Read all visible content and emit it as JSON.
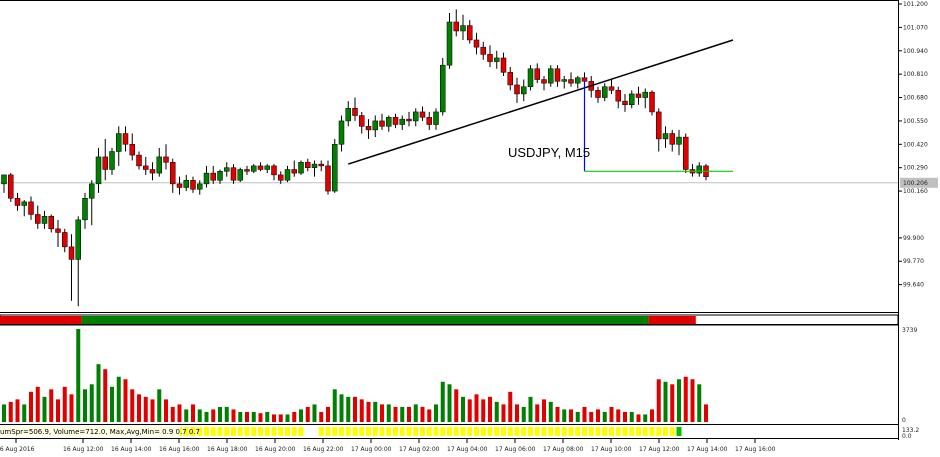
{
  "chart_data": {
    "type": "candlestick",
    "title": "USDJPY, M15",
    "price_axis": {
      "ylim": [
        99.51,
        101.2
      ],
      "ticks": [
        "101.200",
        "101.070",
        "100.940",
        "100.810",
        "100.680",
        "100.550",
        "100.420",
        "100.290",
        "100.160",
        "99.900",
        "99.770",
        "99.640"
      ],
      "current_price": "100.206"
    },
    "time_axis": {
      "ticks": [
        "16 Aug 2016",
        "16 Aug 12:00",
        "16 Aug 14:00",
        "16 Aug 16:00",
        "16 Aug 18:00",
        "16 Aug 20:00",
        "16 Aug 22:00",
        "17 Aug 00:00",
        "17 Aug 02:00",
        "17 Aug 04:00",
        "17 Aug 06:00",
        "17 Aug 08:00",
        "17 Aug 10:00",
        "17 Aug 12:00",
        "17 Aug 14:00",
        "17 Aug 16:00"
      ]
    },
    "candles": [
      {
        "o": 100.2,
        "h": 100.25,
        "l": 100.15,
        "c": 100.25
      },
      {
        "o": 100.25,
        "h": 100.26,
        "l": 100.1,
        "c": 100.12
      },
      {
        "o": 100.12,
        "h": 100.15,
        "l": 100.05,
        "c": 100.08
      },
      {
        "o": 100.08,
        "h": 100.11,
        "l": 100.02,
        "c": 100.1
      },
      {
        "o": 100.1,
        "h": 100.13,
        "l": 100.0,
        "c": 100.03
      },
      {
        "o": 100.03,
        "h": 100.08,
        "l": 99.95,
        "c": 99.98
      },
      {
        "o": 99.98,
        "h": 100.05,
        "l": 99.95,
        "c": 100.02
      },
      {
        "o": 100.02,
        "h": 100.03,
        "l": 99.93,
        "c": 99.95
      },
      {
        "o": 99.95,
        "h": 100.0,
        "l": 99.85,
        "c": 99.93
      },
      {
        "o": 99.93,
        "h": 99.95,
        "l": 99.82,
        "c": 99.85
      },
      {
        "o": 99.85,
        "h": 99.92,
        "l": 99.55,
        "c": 99.78
      },
      {
        "o": 99.78,
        "h": 100.02,
        "l": 99.52,
        "c": 100.0
      },
      {
        "o": 100.0,
        "h": 100.15,
        "l": 99.95,
        "c": 100.12
      },
      {
        "o": 100.12,
        "h": 100.22,
        "l": 99.97,
        "c": 100.2
      },
      {
        "o": 100.2,
        "h": 100.4,
        "l": 100.15,
        "c": 100.35
      },
      {
        "o": 100.35,
        "h": 100.45,
        "l": 100.22,
        "c": 100.28
      },
      {
        "o": 100.28,
        "h": 100.4,
        "l": 100.25,
        "c": 100.38
      },
      {
        "o": 100.38,
        "h": 100.52,
        "l": 100.3,
        "c": 100.48
      },
      {
        "o": 100.48,
        "h": 100.52,
        "l": 100.38,
        "c": 100.42
      },
      {
        "o": 100.42,
        "h": 100.48,
        "l": 100.33,
        "c": 100.36
      },
      {
        "o": 100.36,
        "h": 100.38,
        "l": 100.28,
        "c": 100.3
      },
      {
        "o": 100.3,
        "h": 100.35,
        "l": 100.25,
        "c": 100.28
      },
      {
        "o": 100.28,
        "h": 100.32,
        "l": 100.22,
        "c": 100.26
      },
      {
        "o": 100.26,
        "h": 100.4,
        "l": 100.24,
        "c": 100.35
      },
      {
        "o": 100.35,
        "h": 100.42,
        "l": 100.28,
        "c": 100.32
      },
      {
        "o": 100.32,
        "h": 100.34,
        "l": 100.15,
        "c": 100.2
      },
      {
        "o": 100.2,
        "h": 100.24,
        "l": 100.14,
        "c": 100.18
      },
      {
        "o": 100.18,
        "h": 100.25,
        "l": 100.16,
        "c": 100.22
      },
      {
        "o": 100.22,
        "h": 100.24,
        "l": 100.15,
        "c": 100.17
      },
      {
        "o": 100.17,
        "h": 100.22,
        "l": 100.14,
        "c": 100.2
      },
      {
        "o": 100.2,
        "h": 100.3,
        "l": 100.18,
        "c": 100.26
      },
      {
        "o": 100.26,
        "h": 100.3,
        "l": 100.2,
        "c": 100.22
      },
      {
        "o": 100.22,
        "h": 100.28,
        "l": 100.2,
        "c": 100.27
      },
      {
        "o": 100.27,
        "h": 100.32,
        "l": 100.24,
        "c": 100.29
      },
      {
        "o": 100.29,
        "h": 100.31,
        "l": 100.2,
        "c": 100.22
      },
      {
        "o": 100.22,
        "h": 100.29,
        "l": 100.21,
        "c": 100.28
      },
      {
        "o": 100.28,
        "h": 100.3,
        "l": 100.25,
        "c": 100.27
      },
      {
        "o": 100.27,
        "h": 100.31,
        "l": 100.26,
        "c": 100.3
      },
      {
        "o": 100.3,
        "h": 100.32,
        "l": 100.27,
        "c": 100.28
      },
      {
        "o": 100.28,
        "h": 100.31,
        "l": 100.26,
        "c": 100.3
      },
      {
        "o": 100.3,
        "h": 100.31,
        "l": 100.22,
        "c": 100.25
      },
      {
        "o": 100.25,
        "h": 100.27,
        "l": 100.2,
        "c": 100.22
      },
      {
        "o": 100.22,
        "h": 100.3,
        "l": 100.21,
        "c": 100.28
      },
      {
        "o": 100.28,
        "h": 100.33,
        "l": 100.24,
        "c": 100.26
      },
      {
        "o": 100.26,
        "h": 100.33,
        "l": 100.25,
        "c": 100.32
      },
      {
        "o": 100.32,
        "h": 100.34,
        "l": 100.27,
        "c": 100.29
      },
      {
        "o": 100.29,
        "h": 100.33,
        "l": 100.24,
        "c": 100.31
      },
      {
        "o": 100.31,
        "h": 100.33,
        "l": 100.27,
        "c": 100.3
      },
      {
        "o": 100.3,
        "h": 100.33,
        "l": 100.14,
        "c": 100.16
      },
      {
        "o": 100.16,
        "h": 100.45,
        "l": 100.15,
        "c": 100.42
      },
      {
        "o": 100.42,
        "h": 100.58,
        "l": 100.38,
        "c": 100.55
      },
      {
        "o": 100.55,
        "h": 100.66,
        "l": 100.52,
        "c": 100.62
      },
      {
        "o": 100.62,
        "h": 100.68,
        "l": 100.55,
        "c": 100.58
      },
      {
        "o": 100.58,
        "h": 100.6,
        "l": 100.48,
        "c": 100.52
      },
      {
        "o": 100.52,
        "h": 100.56,
        "l": 100.45,
        "c": 100.5
      },
      {
        "o": 100.5,
        "h": 100.58,
        "l": 100.46,
        "c": 100.55
      },
      {
        "o": 100.55,
        "h": 100.59,
        "l": 100.5,
        "c": 100.52
      },
      {
        "o": 100.52,
        "h": 100.58,
        "l": 100.49,
        "c": 100.57
      },
      {
        "o": 100.57,
        "h": 100.59,
        "l": 100.51,
        "c": 100.53
      },
      {
        "o": 100.53,
        "h": 100.58,
        "l": 100.5,
        "c": 100.56
      },
      {
        "o": 100.56,
        "h": 100.6,
        "l": 100.52,
        "c": 100.55
      },
      {
        "o": 100.55,
        "h": 100.62,
        "l": 100.52,
        "c": 100.6
      },
      {
        "o": 100.6,
        "h": 100.63,
        "l": 100.55,
        "c": 100.57
      },
      {
        "o": 100.57,
        "h": 100.6,
        "l": 100.5,
        "c": 100.53
      },
      {
        "o": 100.53,
        "h": 100.62,
        "l": 100.5,
        "c": 100.6
      },
      {
        "o": 100.6,
        "h": 100.9,
        "l": 100.58,
        "c": 100.86
      },
      {
        "o": 100.86,
        "h": 101.15,
        "l": 100.84,
        "c": 101.1
      },
      {
        "o": 101.1,
        "h": 101.17,
        "l": 101.02,
        "c": 101.05
      },
      {
        "o": 101.05,
        "h": 101.14,
        "l": 101.0,
        "c": 101.08
      },
      {
        "o": 101.08,
        "h": 101.11,
        "l": 100.98,
        "c": 101.0
      },
      {
        "o": 101.0,
        "h": 101.04,
        "l": 100.92,
        "c": 100.96
      },
      {
        "o": 100.96,
        "h": 100.99,
        "l": 100.89,
        "c": 100.92
      },
      {
        "o": 100.92,
        "h": 100.97,
        "l": 100.85,
        "c": 100.88
      },
      {
        "o": 100.88,
        "h": 100.94,
        "l": 100.84,
        "c": 100.9
      },
      {
        "o": 100.9,
        "h": 100.93,
        "l": 100.8,
        "c": 100.82
      },
      {
        "o": 100.82,
        "h": 100.85,
        "l": 100.72,
        "c": 100.75
      },
      {
        "o": 100.75,
        "h": 100.79,
        "l": 100.65,
        "c": 100.7
      },
      {
        "o": 100.7,
        "h": 100.78,
        "l": 100.66,
        "c": 100.74
      },
      {
        "o": 100.74,
        "h": 100.86,
        "l": 100.72,
        "c": 100.84
      },
      {
        "o": 100.84,
        "h": 100.87,
        "l": 100.76,
        "c": 100.78
      },
      {
        "o": 100.78,
        "h": 100.8,
        "l": 100.72,
        "c": 100.76
      },
      {
        "o": 100.76,
        "h": 100.86,
        "l": 100.74,
        "c": 100.84
      },
      {
        "o": 100.84,
        "h": 100.86,
        "l": 100.74,
        "c": 100.77
      },
      {
        "o": 100.77,
        "h": 100.8,
        "l": 100.73,
        "c": 100.78
      },
      {
        "o": 100.78,
        "h": 100.82,
        "l": 100.74,
        "c": 100.76
      },
      {
        "o": 100.76,
        "h": 100.8,
        "l": 100.73,
        "c": 100.79
      },
      {
        "o": 100.79,
        "h": 100.82,
        "l": 100.75,
        "c": 100.77
      },
      {
        "o": 100.77,
        "h": 100.8,
        "l": 100.68,
        "c": 100.72
      },
      {
        "o": 100.72,
        "h": 100.74,
        "l": 100.65,
        "c": 100.68
      },
      {
        "o": 100.68,
        "h": 100.76,
        "l": 100.66,
        "c": 100.74
      },
      {
        "o": 100.74,
        "h": 100.78,
        "l": 100.7,
        "c": 100.72
      },
      {
        "o": 100.72,
        "h": 100.74,
        "l": 100.62,
        "c": 100.66
      },
      {
        "o": 100.66,
        "h": 100.7,
        "l": 100.6,
        "c": 100.64
      },
      {
        "o": 100.64,
        "h": 100.72,
        "l": 100.62,
        "c": 100.7
      },
      {
        "o": 100.7,
        "h": 100.74,
        "l": 100.64,
        "c": 100.68
      },
      {
        "o": 100.68,
        "h": 100.73,
        "l": 100.62,
        "c": 100.71
      },
      {
        "o": 100.71,
        "h": 100.72,
        "l": 100.58,
        "c": 100.6
      },
      {
        "o": 100.6,
        "h": 100.62,
        "l": 100.38,
        "c": 100.45
      },
      {
        "o": 100.45,
        "h": 100.52,
        "l": 100.4,
        "c": 100.48
      },
      {
        "o": 100.48,
        "h": 100.5,
        "l": 100.38,
        "c": 100.42
      },
      {
        "o": 100.42,
        "h": 100.5,
        "l": 100.36,
        "c": 100.46
      },
      {
        "o": 100.46,
        "h": 100.48,
        "l": 100.26,
        "c": 100.28
      },
      {
        "o": 100.28,
        "h": 100.31,
        "l": 100.24,
        "c": 100.26
      },
      {
        "o": 100.26,
        "h": 100.32,
        "l": 100.24,
        "c": 100.3
      },
      {
        "o": 100.3,
        "h": 100.31,
        "l": 100.22,
        "c": 100.24
      }
    ],
    "trendline": {
      "start": {
        "bar": 51,
        "price": 100.31
      },
      "end": {
        "bar": 108,
        "price": 101.0
      }
    },
    "vertical_marker": {
      "bar": 86,
      "from_price": 100.77,
      "to_price": 100.27
    },
    "horizontal_marker": {
      "from_bar": 86,
      "to_bar": 108,
      "price": 100.27
    },
    "trend_strip": [
      {
        "state": "down",
        "bars": 12,
        "color": "#e00000"
      },
      {
        "state": "up",
        "bars": 84,
        "color": "#008000"
      },
      {
        "state": "down",
        "bars": 7,
        "color": "#e00000"
      },
      {
        "state": "none",
        "bars": 5,
        "color": "#ffffff"
      }
    ],
    "volume_panel": {
      "scale_top": "3739",
      "scale_bottom": "0",
      "ylim": [
        0,
        3739
      ],
      "values": [
        700,
        800,
        900,
        700,
        1200,
        1400,
        1000,
        1300,
        900,
        1400,
        1100,
        3700,
        1300,
        1500,
        2300,
        2100,
        1400,
        1800,
        1700,
        1300,
        1100,
        1000,
        900,
        1300,
        900,
        600,
        700,
        500,
        700,
        500,
        400,
        500,
        600,
        600,
        500,
        400,
        400,
        400,
        350,
        400,
        300,
        300,
        300,
        400,
        500,
        600,
        700,
        400,
        600,
        1300,
        1100,
        1000,
        1000,
        900,
        800,
        800,
        700,
        700,
        600,
        600,
        600,
        700,
        600,
        500,
        700,
        1600,
        1500,
        1300,
        1000,
        900,
        1100,
        900,
        1000,
        800,
        700,
        1200,
        700,
        600,
        1000,
        700,
        900,
        800,
        600,
        500,
        500,
        400,
        600,
        400,
        500,
        400,
        600,
        500,
        400,
        400,
        300,
        300,
        500,
        1700,
        1600,
        1500,
        1700,
        1800,
        1700,
        1500,
        700
      ]
    },
    "status_text": "umSpr=506.9, Volume=712.0, Max,Avg,Min= 0.9 0.7 0.7",
    "status_scale": [
      "133.2",
      "0.0"
    ],
    "spread_cells": [
      {
        "color": "#ffff00",
        "bars": 45
      },
      {
        "color": "#ffffff",
        "bars": 2
      },
      {
        "color": "#ffff00",
        "bars": 53
      },
      {
        "color": "#00c000",
        "bars": 1
      },
      {
        "color": "#ffffff",
        "bars": 7
      }
    ],
    "colors": {
      "bull": "#008000",
      "bear": "#e00000",
      "trendline": "#000000",
      "vertical_marker": "#0000ff",
      "horizontal_marker": "#00d000",
      "price_line": "#c0c0c0"
    }
  }
}
